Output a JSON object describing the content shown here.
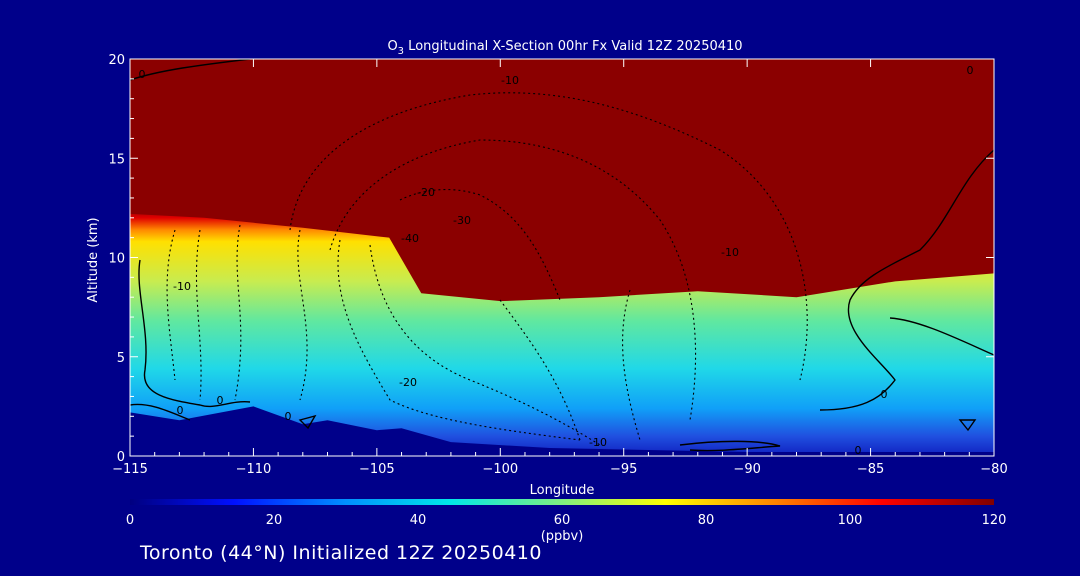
{
  "chart_data": {
    "type": "heatmap",
    "title_prefix": "O",
    "title_sub": "3",
    "title_rest": " Longitudinal X-Section 00hr  Fx Valid 12Z 20250410",
    "xlabel": "Longitude",
    "ylabel": "Altitude (km)",
    "xlim": [
      -115,
      -80
    ],
    "ylim": [
      0,
      20
    ],
    "x_ticks": [
      -115,
      -110,
      -105,
      -100,
      -95,
      -90,
      -85,
      -80
    ],
    "x_tick_labels": [
      "−115",
      "−110",
      "−105",
      "−100",
      "−95",
      "−90",
      "−85",
      "−80"
    ],
    "y_ticks": [
      0,
      5,
      10,
      15,
      20
    ],
    "y_tick_labels": [
      "0",
      "5",
      "10",
      "15",
      "20"
    ],
    "colorbar": {
      "min": 0,
      "max": 120,
      "ticks": [
        0,
        20,
        40,
        60,
        80,
        100,
        120
      ],
      "tick_labels": [
        "0",
        "20",
        "40",
        "60",
        "80",
        "100",
        "120"
      ],
      "units": "(ppbv)"
    },
    "ozone_top_altitude_km": [
      {
        "lon": -115,
        "alt": 12.2
      },
      {
        "lon": -112,
        "alt": 12.0
      },
      {
        "lon": -108,
        "alt": 11.5
      },
      {
        "lon": -104.5,
        "alt": 11.0
      },
      {
        "lon": -103.2,
        "alt": 8.2
      },
      {
        "lon": -100,
        "alt": 7.8
      },
      {
        "lon": -96,
        "alt": 8.0
      },
      {
        "lon": -92,
        "alt": 8.3
      },
      {
        "lon": -88,
        "alt": 8.0
      },
      {
        "lon": -84,
        "alt": 8.8
      },
      {
        "lon": -80,
        "alt": 9.2
      }
    ],
    "terrain_altitude_km": [
      {
        "lon": -115,
        "alt": 2.2
      },
      {
        "lon": -113,
        "alt": 1.8
      },
      {
        "lon": -110,
        "alt": 2.5
      },
      {
        "lon": -108,
        "alt": 1.6
      },
      {
        "lon": -107,
        "alt": 1.8
      },
      {
        "lon": -105,
        "alt": 1.3
      },
      {
        "lon": -104,
        "alt": 1.4
      },
      {
        "lon": -102,
        "alt": 0.7
      },
      {
        "lon": -98,
        "alt": 0.4
      },
      {
        "lon": -94,
        "alt": 0.3
      },
      {
        "lon": -90,
        "alt": 0.2
      },
      {
        "lon": -86,
        "alt": 0.2
      },
      {
        "lon": -80,
        "alt": 0.2
      }
    ],
    "contour_labels": [
      "0",
      "0",
      "0",
      "0",
      "0",
      "0",
      "0",
      "-10",
      "-10",
      "-10",
      "-10",
      "-20",
      "-20",
      "-30",
      "-40"
    ]
  },
  "footer": "Toronto (44°N) Initialized 12Z 20250410"
}
